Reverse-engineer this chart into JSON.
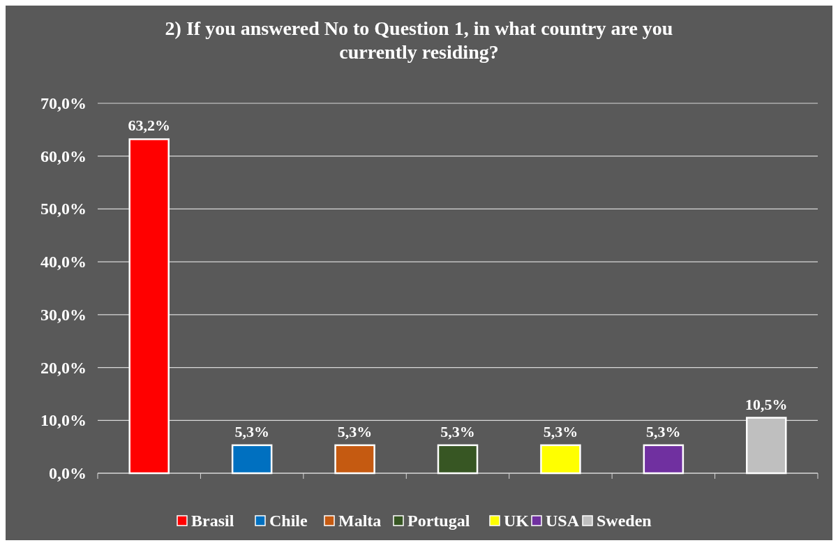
{
  "chart_data": {
    "type": "bar",
    "title": "2) If you answered No to Question 1, in what country are you currently residing?",
    "categories": [
      null,
      null,
      null,
      null,
      null,
      null,
      null
    ],
    "stacked": true,
    "series": [
      {
        "name": "Brasil",
        "color": "#ff0000",
        "values": [
          63.2,
          null,
          null,
          null,
          null,
          null,
          null
        ],
        "value_labels": [
          "63,2%",
          null,
          null,
          null,
          null,
          null,
          null
        ]
      },
      {
        "name": "Chile",
        "color": "#0070c0",
        "values": [
          null,
          5.3,
          null,
          null,
          null,
          null,
          null
        ],
        "value_labels": [
          null,
          "5,3%",
          null,
          null,
          null,
          null,
          null
        ]
      },
      {
        "name": "Malta",
        "color": "#c55a11",
        "values": [
          null,
          null,
          5.3,
          null,
          null,
          null,
          null
        ],
        "value_labels": [
          null,
          null,
          "5,3%",
          null,
          null,
          null,
          null
        ]
      },
      {
        "name": "Portugal",
        "color": "#375623",
        "values": [
          null,
          null,
          null,
          5.3,
          null,
          null,
          null
        ],
        "value_labels": [
          null,
          null,
          null,
          "5,3%",
          null,
          null,
          null
        ]
      },
      {
        "name": "UK",
        "color": "#ffff00",
        "values": [
          null,
          null,
          null,
          null,
          5.3,
          null,
          null
        ],
        "value_labels": [
          null,
          null,
          null,
          null,
          "5,3%",
          null,
          null
        ]
      },
      {
        "name": "USA",
        "color": "#7030a0",
        "values": [
          null,
          null,
          null,
          null,
          null,
          5.3,
          null
        ],
        "value_labels": [
          null,
          null,
          null,
          null,
          null,
          "5,3%",
          null
        ]
      },
      {
        "name": "Sweden",
        "color": "#bfbfbf",
        "values": [
          null,
          null,
          null,
          null,
          null,
          null,
          10.5
        ],
        "value_labels": [
          null,
          null,
          null,
          null,
          null,
          null,
          "10,5%"
        ]
      }
    ],
    "ylim": [
      0,
      70
    ],
    "yticks": [
      {
        "value": 0,
        "label": "0,0%"
      },
      {
        "value": 10,
        "label": "10,0%"
      },
      {
        "value": 20,
        "label": "20,0%"
      },
      {
        "value": 30,
        "label": "30,0%"
      },
      {
        "value": 40,
        "label": "40,0%"
      },
      {
        "value": 50,
        "label": "50,0%"
      },
      {
        "value": 60,
        "label": "60,0%"
      },
      {
        "value": 70,
        "label": "70,0%"
      }
    ],
    "grid": "y",
    "legend": "bottom"
  }
}
